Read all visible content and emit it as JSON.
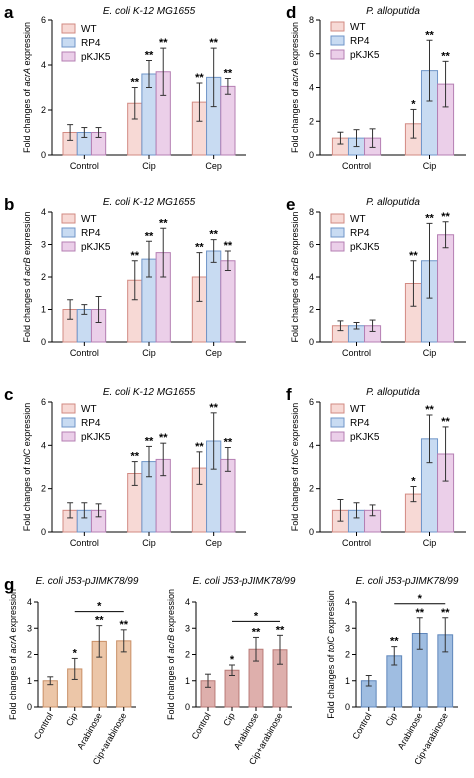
{
  "chart_data": [
    {
      "type": "bar",
      "panel_letter": "a",
      "title": "E. coli K-12 MG1655",
      "ylabel_prefix": "Fold changes of ",
      "ylabel_gene": "acrA",
      "ylabel_suffix": " expression",
      "categories": [
        "Control",
        "Cip",
        "Cep"
      ],
      "ylim": [
        0,
        6
      ],
      "yticks": [
        "0",
        "2",
        "4",
        "6"
      ],
      "legend_position": "top-left",
      "series": [
        {
          "name": "WT",
          "color": "#f7d9d5",
          "edge": "#d28a82",
          "values": [
            1.0,
            2.3,
            2.35
          ],
          "errors": [
            0.35,
            0.7,
            0.85
          ],
          "sig": [
            "",
            "**",
            "**"
          ]
        },
        {
          "name": "RP4",
          "color": "#c8dbf2",
          "edge": "#6f95c8",
          "values": [
            1.0,
            3.6,
            3.45
          ],
          "errors": [
            0.22,
            0.6,
            1.3
          ],
          "sig": [
            "",
            "**",
            "**"
          ]
        },
        {
          "name": "pKJK5",
          "color": "#ebcfe9",
          "edge": "#b57fb3",
          "values": [
            1.0,
            3.7,
            3.05
          ],
          "errors": [
            0.22,
            1.05,
            0.35
          ],
          "sig": [
            "",
            "**",
            "**"
          ]
        }
      ]
    },
    {
      "type": "bar",
      "panel_letter": "b",
      "title": "E. coli K-12 MG1655",
      "ylabel_prefix": "Fold changes of ",
      "ylabel_gene": "acrB",
      "ylabel_suffix": " expression",
      "categories": [
        "Control",
        "Cip",
        "Cep"
      ],
      "ylim": [
        0,
        4
      ],
      "yticks": [
        "0",
        "1",
        "2",
        "3",
        "4"
      ],
      "legend_position": "top-left",
      "series": [
        {
          "name": "WT",
          "color": "#f7d9d5",
          "edge": "#d28a82",
          "values": [
            1.0,
            1.9,
            2.0
          ],
          "errors": [
            0.3,
            0.6,
            0.75
          ],
          "sig": [
            "",
            "**",
            "**"
          ]
        },
        {
          "name": "RP4",
          "color": "#c8dbf2",
          "edge": "#6f95c8",
          "values": [
            1.0,
            2.55,
            2.8
          ],
          "errors": [
            0.15,
            0.55,
            0.35
          ],
          "sig": [
            "",
            "**",
            "**"
          ]
        },
        {
          "name": "pKJK5",
          "color": "#ebcfe9",
          "edge": "#b57fb3",
          "values": [
            1.0,
            2.75,
            2.5
          ],
          "errors": [
            0.4,
            0.75,
            0.3
          ],
          "sig": [
            "",
            "**",
            "**"
          ]
        }
      ]
    },
    {
      "type": "bar",
      "panel_letter": "c",
      "title": "E. coli K-12 MG1655",
      "ylabel_prefix": "Fold changes of ",
      "ylabel_gene": "tolC",
      "ylabel_suffix": " expression",
      "categories": [
        "Control",
        "Cip",
        "Cep"
      ],
      "ylim": [
        0,
        6
      ],
      "yticks": [
        "0",
        "2",
        "4",
        "6"
      ],
      "legend_position": "top-left",
      "series": [
        {
          "name": "WT",
          "color": "#f7d9d5",
          "edge": "#d28a82",
          "values": [
            1.0,
            2.7,
            2.95
          ],
          "errors": [
            0.35,
            0.55,
            0.75
          ],
          "sig": [
            "",
            "**",
            "**"
          ]
        },
        {
          "name": "RP4",
          "color": "#c8dbf2",
          "edge": "#6f95c8",
          "values": [
            1.0,
            3.25,
            4.2
          ],
          "errors": [
            0.35,
            0.7,
            1.3
          ],
          "sig": [
            "",
            "**",
            "**"
          ]
        },
        {
          "name": "pKJK5",
          "color": "#ebcfe9",
          "edge": "#b57fb3",
          "values": [
            1.0,
            3.35,
            3.35
          ],
          "errors": [
            0.3,
            0.75,
            0.55
          ],
          "sig": [
            "",
            "**",
            "**"
          ]
        }
      ]
    },
    {
      "type": "bar",
      "panel_letter": "d",
      "title": "P. alloputida",
      "ylabel_prefix": "Fold changes of ",
      "ylabel_gene": "acrA",
      "ylabel_suffix": " expression",
      "categories": [
        "Control",
        "Cip"
      ],
      "ylim": [
        0,
        8
      ],
      "yticks": [
        "0",
        "2",
        "4",
        "6",
        "8"
      ],
      "legend_position": "top-left",
      "series": [
        {
          "name": "WT",
          "color": "#f7d9d5",
          "edge": "#d28a82",
          "values": [
            1.0,
            1.85
          ],
          "errors": [
            0.35,
            0.85
          ],
          "sig": [
            "",
            "*"
          ]
        },
        {
          "name": "RP4",
          "color": "#c8dbf2",
          "edge": "#6f95c8",
          "values": [
            1.0,
            5.0
          ],
          "errors": [
            0.5,
            1.8
          ],
          "sig": [
            "",
            "**"
          ]
        },
        {
          "name": "pKJK5",
          "color": "#ebcfe9",
          "edge": "#b57fb3",
          "values": [
            1.0,
            4.2
          ],
          "errors": [
            0.55,
            1.35
          ],
          "sig": [
            "",
            "**"
          ]
        }
      ]
    },
    {
      "type": "bar",
      "panel_letter": "e",
      "title": "P. alloputida",
      "ylabel_prefix": "Fold changes of ",
      "ylabel_gene": "acrB",
      "ylabel_suffix": " expression",
      "categories": [
        "Control",
        "Cip"
      ],
      "ylim": [
        0,
        8
      ],
      "yticks": [
        "0",
        "2",
        "4",
        "6",
        "8"
      ],
      "legend_position": "top-left",
      "series": [
        {
          "name": "WT",
          "color": "#f7d9d5",
          "edge": "#d28a82",
          "values": [
            1.0,
            3.6
          ],
          "errors": [
            0.3,
            1.4
          ],
          "sig": [
            "",
            "**"
          ]
        },
        {
          "name": "RP4",
          "color": "#c8dbf2",
          "edge": "#6f95c8",
          "values": [
            1.0,
            5.0
          ],
          "errors": [
            0.2,
            2.3
          ],
          "sig": [
            "",
            "**"
          ]
        },
        {
          "name": "pKJK5",
          "color": "#ebcfe9",
          "edge": "#b57fb3",
          "values": [
            1.0,
            6.6
          ],
          "errors": [
            0.35,
            0.8
          ],
          "sig": [
            "",
            "**"
          ]
        }
      ]
    },
    {
      "type": "bar",
      "panel_letter": "f",
      "title": "P. alloputida",
      "ylabel_prefix": "Fold changes of ",
      "ylabel_gene": "tolC",
      "ylabel_suffix": " expression",
      "categories": [
        "Control",
        "Cip"
      ],
      "ylim": [
        0,
        6
      ],
      "yticks": [
        "0",
        "2",
        "4",
        "6"
      ],
      "legend_position": "top-left",
      "series": [
        {
          "name": "WT",
          "color": "#f7d9d5",
          "edge": "#d28a82",
          "values": [
            1.0,
            1.75
          ],
          "errors": [
            0.5,
            0.35
          ],
          "sig": [
            "",
            "*"
          ]
        },
        {
          "name": "RP4",
          "color": "#c8dbf2",
          "edge": "#6f95c8",
          "values": [
            1.0,
            4.3
          ],
          "errors": [
            0.35,
            1.1
          ],
          "sig": [
            "",
            "**"
          ]
        },
        {
          "name": "pKJK5",
          "color": "#ebcfe9",
          "edge": "#b57fb3",
          "values": [
            1.0,
            3.6
          ],
          "errors": [
            0.25,
            1.25
          ],
          "sig": [
            "",
            "**"
          ]
        }
      ]
    },
    {
      "type": "bar",
      "panel_letter": "g",
      "title": "E. coli J53-pJIMK78/99",
      "ylabel_prefix": "Fold changes of ",
      "ylabel_gene": "acrA",
      "ylabel_suffix": " expression",
      "categories": [
        "Control",
        "Cip",
        "Arabinose",
        "Cip+arabinose"
      ],
      "ylim": [
        0,
        4
      ],
      "yticks": [
        "0",
        "1",
        "2",
        "3",
        "4"
      ],
      "color": "#ecc6a8",
      "edge": "#c98f66",
      "values": [
        1.0,
        1.45,
        2.5,
        2.52
      ],
      "errors": [
        0.15,
        0.4,
        0.6,
        0.42
      ],
      "sig": [
        "",
        "*",
        "**",
        "**"
      ],
      "bracket": {
        "from": 1,
        "to": 3,
        "label": "*"
      }
    },
    {
      "type": "bar",
      "title": "E. coli J53-pJIMK78/99",
      "ylabel_prefix": "Fold changes of ",
      "ylabel_gene": "acrB",
      "ylabel_suffix": " expression",
      "categories": [
        "Control",
        "Cip",
        "Arabinose",
        "Cip+arabinose"
      ],
      "ylim": [
        0,
        4
      ],
      "yticks": [
        "0",
        "1",
        "2",
        "3",
        "4"
      ],
      "color": "#deafac",
      "edge": "#b87a77",
      "values": [
        1.0,
        1.4,
        2.2,
        2.18
      ],
      "errors": [
        0.25,
        0.2,
        0.45,
        0.55
      ],
      "sig": [
        "",
        "*",
        "**",
        "**"
      ],
      "bracket": {
        "from": 1,
        "to": 3,
        "label": "*"
      }
    },
    {
      "type": "bar",
      "title": "E. coli J53-pJIMK78/99",
      "ylabel_prefix": "Fold changes of ",
      "ylabel_gene": "tolC",
      "ylabel_suffix": " expression",
      "categories": [
        "Control",
        "Cip",
        "Arabinose",
        "Cip+arabinose"
      ],
      "ylim": [
        0,
        4
      ],
      "yticks": [
        "0",
        "1",
        "2",
        "3",
        "4"
      ],
      "color": "#9fbde1",
      "edge": "#5f86bb",
      "values": [
        1.0,
        1.95,
        2.8,
        2.75
      ],
      "errors": [
        0.2,
        0.35,
        0.6,
        0.65
      ],
      "sig": [
        "",
        "**",
        "**",
        "**"
      ],
      "bracket": {
        "from": 1,
        "to": 3,
        "label": "*"
      }
    }
  ]
}
